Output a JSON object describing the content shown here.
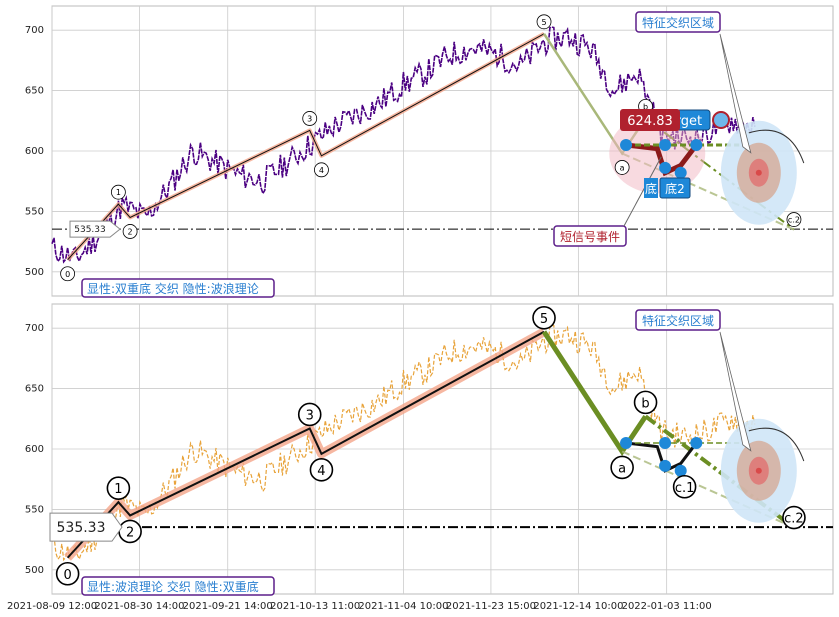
{
  "chart_data": [
    {
      "type": "line",
      "panel": "top",
      "ylim": [
        480,
        720
      ],
      "yticks": [
        500,
        550,
        600,
        650,
        700
      ],
      "grid": true,
      "price_series": [
        [
          0,
          520
        ],
        [
          3,
          510
        ],
        [
          6,
          530
        ],
        [
          9,
          555
        ],
        [
          12,
          545
        ],
        [
          15,
          570
        ],
        [
          18,
          600
        ],
        [
          21,
          590
        ],
        [
          24,
          580
        ],
        [
          27,
          575
        ],
        [
          30,
          590
        ],
        [
          33,
          605
        ],
        [
          36,
          620
        ],
        [
          39,
          630
        ],
        [
          42,
          640
        ],
        [
          45,
          655
        ],
        [
          48,
          665
        ],
        [
          51,
          680
        ],
        [
          54,
          685
        ],
        [
          57,
          680
        ],
        [
          60,
          670
        ],
        [
          63,
          690
        ],
        [
          66,
          695
        ],
        [
          69,
          685
        ],
        [
          72,
          650
        ],
        [
          75,
          665
        ],
        [
          78,
          615
        ],
        [
          81,
          610
        ],
        [
          84,
          615
        ],
        [
          87,
          625
        ],
        [
          90,
          620
        ]
      ],
      "wave_points": [
        {
          "label": "0",
          "x": 2,
          "y": 510
        },
        {
          "label": "1",
          "x": 8.5,
          "y": 556
        },
        {
          "label": "2",
          "x": 10,
          "y": 545
        },
        {
          "label": "3",
          "x": 33,
          "y": 617
        },
        {
          "label": "4",
          "x": 34.5,
          "y": 596
        },
        {
          "label": "5",
          "x": 63,
          "y": 697
        },
        {
          "label": "a",
          "x": 73,
          "y": 598
        },
        {
          "label": "b",
          "x": 76,
          "y": 627
        },
        {
          "label": "c.2",
          "x": 95,
          "y": 535
        }
      ],
      "support_level": 535.33,
      "support_label": "535.33",
      "price_tag": "624.83",
      "target_label": "Target",
      "bottom_label": "底2",
      "bottom_label_partial": "底",
      "annotation_feature": "特征交织区域",
      "annotation_signal": "短信号事件",
      "legend_text": "显性:双重底 交织 隐性:波浪理论"
    },
    {
      "type": "line",
      "panel": "bottom",
      "ylim": [
        480,
        720
      ],
      "yticks": [
        500,
        550,
        600,
        650,
        700
      ],
      "grid": true,
      "price_series": [
        [
          0,
          520
        ],
        [
          3,
          510
        ],
        [
          6,
          530
        ],
        [
          9,
          555
        ],
        [
          12,
          545
        ],
        [
          15,
          570
        ],
        [
          18,
          600
        ],
        [
          21,
          590
        ],
        [
          24,
          580
        ],
        [
          27,
          575
        ],
        [
          30,
          590
        ],
        [
          33,
          605
        ],
        [
          36,
          620
        ],
        [
          39,
          630
        ],
        [
          42,
          640
        ],
        [
          45,
          655
        ],
        [
          48,
          665
        ],
        [
          51,
          680
        ],
        [
          54,
          685
        ],
        [
          57,
          680
        ],
        [
          60,
          670
        ],
        [
          63,
          690
        ],
        [
          66,
          695
        ],
        [
          69,
          685
        ],
        [
          72,
          650
        ],
        [
          75,
          665
        ],
        [
          78,
          615
        ],
        [
          81,
          610
        ],
        [
          84,
          615
        ],
        [
          87,
          625
        ],
        [
          90,
          620
        ]
      ],
      "wave_points": [
        {
          "label": "0",
          "x": 2,
          "y": 510
        },
        {
          "label": "1",
          "x": 8.5,
          "y": 556
        },
        {
          "label": "2",
          "x": 10,
          "y": 545
        },
        {
          "label": "3",
          "x": 33,
          "y": 617
        },
        {
          "label": "4",
          "x": 34.5,
          "y": 596
        },
        {
          "label": "5",
          "x": 63,
          "y": 697
        },
        {
          "label": "a",
          "x": 73,
          "y": 598
        },
        {
          "label": "b",
          "x": 76,
          "y": 627
        },
        {
          "label": "c.1",
          "x": 81,
          "y": 582
        },
        {
          "label": "c.2",
          "x": 95,
          "y": 535
        }
      ],
      "support_level": 535.33,
      "support_label": "535.33",
      "annotation_feature": "特征交织区域",
      "legend_text": "显性:波浪理论 交织 隐性:双重底"
    }
  ],
  "x_axis": {
    "ticks": [
      {
        "x": 0,
        "label": "2021-08-09 12:00"
      },
      {
        "x": 11.2,
        "label": "2021-08-30 14:00"
      },
      {
        "x": 22.5,
        "label": "2021-09-21 14:00"
      },
      {
        "x": 33.7,
        "label": "2021-10-13 11:00"
      },
      {
        "x": 45,
        "label": "2021-11-04 10:00"
      },
      {
        "x": 56.2,
        "label": "2021-11-23 15:00"
      },
      {
        "x": 67.4,
        "label": "2021-12-14 10:00"
      },
      {
        "x": 78.7,
        "label": "2022-01-03 11:00"
      }
    ]
  },
  "colors": {
    "price_top": "#4b0082",
    "price_bottom": "#e8a33a",
    "wave_line": "#111111",
    "wave_band": "#f4a58a",
    "correction_green": "#6b8e23",
    "correction_light": "#a9b87a",
    "marker_blue": "#1e88d8",
    "target_zone_blue": "#cfe6f7",
    "target_zone_red": "#d94a4a",
    "label_box_border": "#5c1e8a",
    "label_box_text": "#2a7fd0",
    "signal_text": "#b0212e",
    "price_tag_bg": "#b0212e",
    "grid": "#cccccc"
  }
}
